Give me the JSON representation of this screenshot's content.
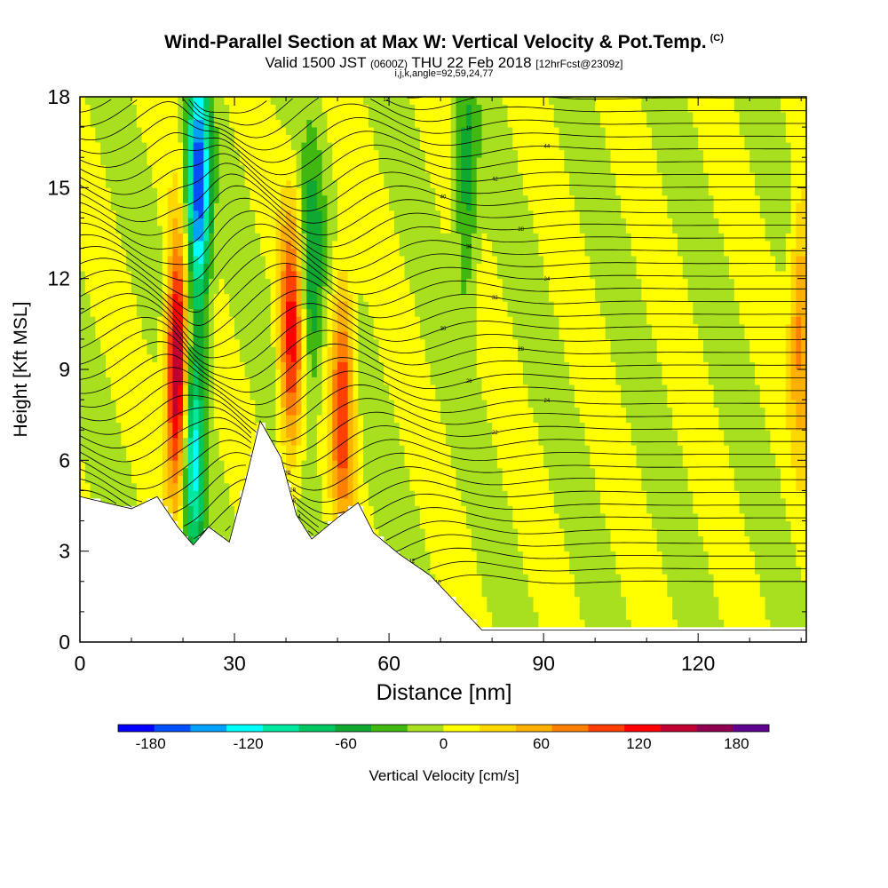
{
  "header": {
    "title": "Wind-Parallel Section at Max W: Vertical Velocity & Pot.Temp.",
    "title_mark": "(C)",
    "subtitle_pre": "Valid 1500 JST",
    "subtitle_utc": "(0600Z)",
    "subtitle_post": "THU 22 Feb 2018",
    "subtitle_fcst": "[12hrFcst@2309z]",
    "params": "i,j,k,angle=92,59,24,77"
  },
  "chart_data": {
    "type": "heatmap",
    "title": "Wind-Parallel Section at Max W: Vertical Velocity & Pot.Temp.",
    "xlabel": "Distance [nm]",
    "ylabel": "Height [Kft MSL]",
    "xlim": [
      0,
      141
    ],
    "ylim": [
      0,
      18
    ],
    "x_ticks": [
      "0",
      "30",
      "60",
      "90",
      "120"
    ],
    "x_tick_values": [
      0,
      30,
      60,
      90,
      120
    ],
    "y_ticks": [
      "0",
      "3",
      "6",
      "9",
      "12",
      "15",
      "18"
    ],
    "y_tick_values": [
      0,
      3,
      6,
      9,
      12,
      15,
      18
    ],
    "colorbar": {
      "label": "Vertical Velocity [cm/s]",
      "min": -200,
      "max": 200,
      "ticks": [
        "-180",
        "-120",
        "-60",
        "0",
        "60",
        "120",
        "180"
      ],
      "tick_values": [
        -180,
        -120,
        -60,
        0,
        60,
        120,
        180
      ],
      "colors": [
        "#0000ff",
        "#0050ff",
        "#00a0ff",
        "#00ffff",
        "#00e8a0",
        "#00c860",
        "#10a830",
        "#40b810",
        "#a8e020",
        "#ffff00",
        "#ffd800",
        "#ffb000",
        "#ff8000",
        "#ff4000",
        "#ff0000",
        "#c00030",
        "#900050",
        "#600090"
      ]
    },
    "terrain_kft": [
      [
        0,
        4.8
      ],
      [
        5,
        4.6
      ],
      [
        10,
        4.4
      ],
      [
        15,
        4.8
      ],
      [
        19,
        3.8
      ],
      [
        22,
        3.2
      ],
      [
        25,
        3.8
      ],
      [
        29,
        3.3
      ],
      [
        32,
        5.2
      ],
      [
        35,
        7.3
      ],
      [
        39,
        6.1
      ],
      [
        42,
        4.2
      ],
      [
        45,
        3.4
      ],
      [
        50,
        4.1
      ],
      [
        54,
        4.6
      ],
      [
        57,
        3.6
      ],
      [
        62,
        2.9
      ],
      [
        68,
        2.2
      ],
      [
        73,
        1.3
      ],
      [
        78,
        0.4
      ],
      [
        141,
        0.4
      ]
    ],
    "updrafts": [
      {
        "x": 19,
        "z": 9,
        "w": 180
      },
      {
        "x": 41,
        "z": 10,
        "w": 120
      },
      {
        "x": 51,
        "z": 8,
        "w": 110
      },
      {
        "x": 140,
        "z": 10.5,
        "w": 80
      }
    ],
    "downdrafts": [
      {
        "x": 23,
        "z": 15,
        "w": -180
      },
      {
        "x": 22,
        "z": 6,
        "w": -120
      },
      {
        "x": 45,
        "z": 12,
        "w": -70
      },
      {
        "x": 75,
        "z": 15,
        "w": -60
      }
    ],
    "theta_contour_labels": [
      "10",
      "12",
      "14",
      "16",
      "18",
      "20",
      "22",
      "24",
      "26",
      "28",
      "30",
      "32",
      "34",
      "36",
      "38",
      "40",
      "42",
      "44"
    ]
  }
}
